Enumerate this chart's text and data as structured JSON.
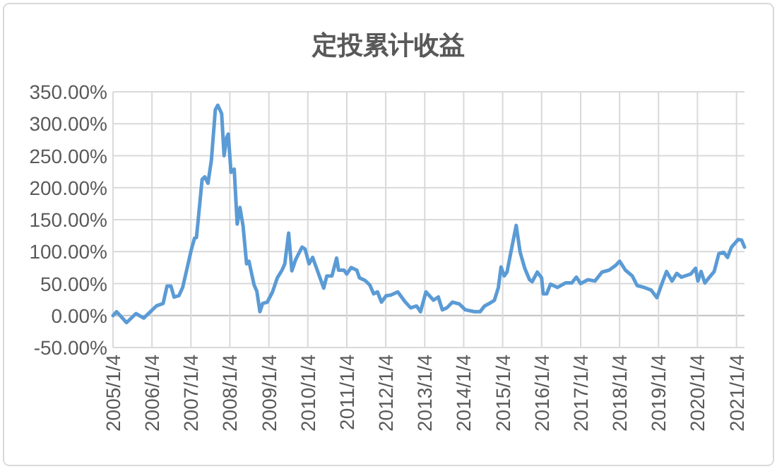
{
  "chart_data": {
    "type": "line",
    "title": "定投累计收益",
    "grid": true,
    "marker": "none",
    "line_style": "solid",
    "xlim": [
      "2005-01-04",
      "2021-03-20"
    ],
    "xticks": [
      {
        "value": "2005-01-04",
        "label": "2005/1/4"
      },
      {
        "value": "2006-01-04",
        "label": "2006/1/4"
      },
      {
        "value": "2007-01-04",
        "label": "2007/1/4"
      },
      {
        "value": "2008-01-04",
        "label": "2008/1/4"
      },
      {
        "value": "2009-01-04",
        "label": "2009/1/4"
      },
      {
        "value": "2010-01-04",
        "label": "2010/1/4"
      },
      {
        "value": "2011-01-04",
        "label": "2011/1/4"
      },
      {
        "value": "2012-01-04",
        "label": "2012/1/4"
      },
      {
        "value": "2013-01-04",
        "label": "2013/1/4"
      },
      {
        "value": "2014-01-04",
        "label": "2014/1/4"
      },
      {
        "value": "2015-01-04",
        "label": "2015/1/4"
      },
      {
        "value": "2016-01-04",
        "label": "2016/1/4"
      },
      {
        "value": "2017-01-04",
        "label": "2017/1/4"
      },
      {
        "value": "2018-01-04",
        "label": "2018/1/4"
      },
      {
        "value": "2019-01-04",
        "label": "2019/1/4"
      },
      {
        "value": "2020-01-04",
        "label": "2020/1/4"
      },
      {
        "value": "2021-01-04",
        "label": "2021/1/4"
      }
    ],
    "ylim": [
      -50,
      350
    ],
    "yticks": [
      {
        "value": -50,
        "label": "-50.00%"
      },
      {
        "value": 0,
        "label": "0.00%"
      },
      {
        "value": 50,
        "label": "50.00%"
      },
      {
        "value": 100,
        "label": "100.00%"
      },
      {
        "value": 150,
        "label": "150.00%"
      },
      {
        "value": 200,
        "label": "200.00%"
      },
      {
        "value": 250,
        "label": "250.00%"
      },
      {
        "value": 300,
        "label": "300.00%"
      },
      {
        "value": 350,
        "label": "350.00%"
      }
    ],
    "x": [
      "2005-01-04",
      "2005-02-07",
      "2005-05-11",
      "2005-08-07",
      "2005-10-19",
      "2006-02-14",
      "2006-04-19",
      "2006-05-25",
      "2006-07-01",
      "2006-07-30",
      "2006-09-13",
      "2006-10-19",
      "2007-01-08",
      "2007-02-07",
      "2007-02-25",
      "2007-03-13",
      "2007-04-19",
      "2007-05-14",
      "2007-06-13",
      "2007-07-15",
      "2007-08-21",
      "2007-09-13",
      "2007-10-19",
      "2007-11-11",
      "2007-12-06",
      "2007-12-20",
      "2008-01-15",
      "2008-02-14",
      "2008-03-13",
      "2008-04-08",
      "2008-05-07",
      "2008-06-09",
      "2008-07-01",
      "2008-08-18",
      "2008-09-13",
      "2008-10-12",
      "2008-11-07",
      "2008-12-20",
      "2009-02-07",
      "2009-03-24",
      "2009-05-07",
      "2009-06-02",
      "2009-07-08",
      "2009-08-07",
      "2009-09-13",
      "2009-11-11",
      "2009-12-09",
      "2010-01-15",
      "2010-02-18",
      "2010-03-27",
      "2010-06-02",
      "2010-07-01",
      "2010-08-18",
      "2010-10-01",
      "2010-10-19",
      "2010-12-09",
      "2011-01-04",
      "2011-02-14",
      "2011-04-08",
      "2011-05-03",
      "2011-06-24",
      "2011-08-07",
      "2011-09-13",
      "2011-10-19",
      "2011-11-25",
      "2012-01-08",
      "2012-02-21",
      "2012-04-26",
      "2012-07-01",
      "2012-08-25",
      "2012-10-19",
      "2012-11-25",
      "2013-01-15",
      "2013-03-27",
      "2013-05-11",
      "2013-06-17",
      "2013-07-30",
      "2013-09-20",
      "2013-11-25",
      "2014-01-19",
      "2014-04-15",
      "2014-06-06",
      "2014-07-19",
      "2014-09-02",
      "2014-10-19",
      "2014-11-25",
      "2014-12-20",
      "2015-01-19",
      "2015-02-14",
      "2015-03-27",
      "2015-05-11",
      "2015-06-17",
      "2015-07-30",
      "2015-09-13",
      "2015-10-08",
      "2015-11-25",
      "2016-01-04",
      "2016-01-19",
      "2016-02-21",
      "2016-03-27",
      "2016-06-02",
      "2016-08-14",
      "2016-10-12",
      "2016-11-25",
      "2017-01-04",
      "2017-03-13",
      "2017-05-18",
      "2017-07-23",
      "2017-09-27",
      "2017-11-25",
      "2018-01-05",
      "2018-02-28",
      "2018-05-03",
      "2018-06-17",
      "2018-08-21",
      "2018-10-26",
      "2018-12-20",
      "2019-02-14",
      "2019-03-20",
      "2019-05-11",
      "2019-06-24",
      "2019-08-07",
      "2019-11-03",
      "2019-12-17",
      "2020-01-08",
      "2020-02-07",
      "2020-03-13",
      "2020-04-26",
      "2020-06-09",
      "2020-07-23",
      "2020-09-06",
      "2020-10-12",
      "2020-11-18",
      "2021-01-19",
      "2021-02-21",
      "2021-03-20"
    ],
    "series": [
      {
        "color": "#5b9bd5",
        "values": [
          0,
          6,
          -11,
          3,
          -4,
          15,
          19,
          46,
          46,
          29,
          31,
          44,
          103,
          121,
          122,
          149,
          213,
          217,
          207,
          243,
          322,
          329,
          316,
          250,
          279,
          284,
          224,
          229,
          143,
          169,
          140,
          81,
          85,
          48,
          38,
          6,
          19,
          21,
          37,
          59,
          71,
          81,
          129,
          70,
          88,
          107,
          104,
          81,
          91,
          74,
          43,
          62,
          62,
          90,
          71,
          71,
          65,
          75,
          71,
          59,
          55,
          48,
          34,
          37,
          21,
          31,
          32,
          37,
          22,
          12,
          15,
          6,
          37,
          24,
          29,
          9,
          12,
          21,
          18,
          9,
          6,
          6,
          15,
          19,
          24,
          44,
          76,
          62,
          68,
          103,
          141,
          99,
          74,
          56,
          53,
          68,
          59,
          34,
          34,
          49,
          44,
          51,
          51,
          60,
          50,
          56,
          54,
          68,
          71,
          78,
          85,
          71,
          62,
          47,
          44,
          40,
          28,
          54,
          69,
          54,
          66,
          60,
          65,
          74,
          54,
          69,
          51,
          60,
          69,
          97,
          99,
          91,
          107,
          119,
          118,
          107
        ]
      }
    ]
  }
}
